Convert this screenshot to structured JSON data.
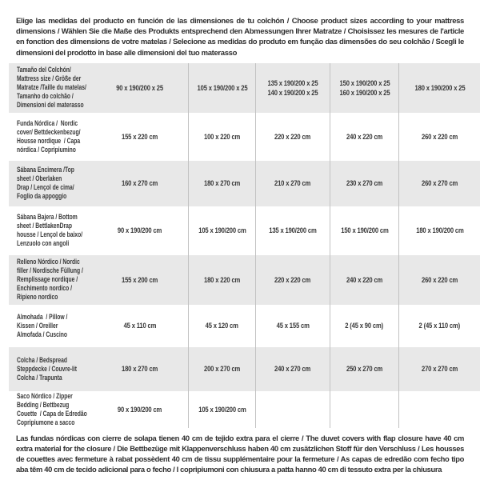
{
  "page": {
    "intro_text": "Elige las medidas del producto en función de las dimensiones de tu colchón / Choose product sizes according to your mattress dimensions / Wählen Sie die Maße des Produkts entsprechend den Abmessungen Ihrer Matratze / Choisissez les mesures de l'article en fonction des dimensions de votre matelas / Selecione as medidas do produto em função das dimensões do seu colchão / Scegli le dimensioni del prodotto in base alle dimensioni del tuo materasso",
    "footer_text": "Las fundas nórdicas con cierre de solapa tienen 40 cm de tejido extra para el cierre  /  The duvet covers with flap closure have 40 cm extra material for the closure / Die Bettbezüge mit Klappenverschluss haben 40 cm zusätzlichen Stoff für den Verschluss / Les housses de couettes avec fermeture à rabat possèdent 40 cm de tissu supplémentaire pour la fermeture / As capas de edredão com fecho tipo aba têm 40 cm de tecido adicional para o fecho / I copripiumoni con chiusura a patta hanno 40 cm di tessuto extra per la chiusura"
  },
  "colors": {
    "row_alt_background": "#e8e8e8",
    "divider": "#c2c2c2",
    "text": "#383838"
  },
  "size_table": {
    "header_row": {
      "label": "Tamaño del Colchón/\nMattress size / Größe der\nMatratze /Taille du matelas/\nTamanho do colchão /\nDimensioni del materasso",
      "columns": [
        "90 x 190/200 x 25",
        "105 x 190/200 x 25",
        "135 x 190/200 x 25\n140 x 190/200 x 25",
        "150 x 190/200 x 25\n160 x 190/200 x 25",
        "180 x 190/200 x 25"
      ]
    },
    "rows": [
      {
        "label": "Funda Nórdica /  Nordic\ncover/ Bettdeckenbezug/\nHousse nordique  / Capa\nnórdica / Copripiumino",
        "values": [
          "155 x 220 cm",
          "100 x 220 cm",
          "220 x 220 cm",
          "240 x 220 cm",
          "260 x 220 cm"
        ]
      },
      {
        "label": "Sábana Encimera /Top\nsheet / Oberlaken\nDrap / Lençol de cima/\nFoglio da appoggio",
        "values": [
          "160 x 270 cm",
          "180 x 270 cm",
          "210 x 270 cm",
          "230 x 270 cm",
          "260 x 270 cm"
        ]
      },
      {
        "label": "Sábana Bajera / Bottom\nsheet / BettlakenDrap\nhousse / Lençol de baixo/\nLenzuolo con angoli",
        "values": [
          "90 x 190/200 cm",
          "105 x 190/200 cm",
          "135 x 190/200 cm",
          "150 x 190/200 cm",
          "180 x 190/200 cm"
        ]
      },
      {
        "label": "Relleno Nórdico / Nordic\nfiller / Nordische Füllung /\nRemplissage nordique /\nEnchimento nordico /\nRipieno nordico",
        "values": [
          "155 x 200 cm",
          "180 x 220 cm",
          "220 x 220 cm",
          "240 x 220 cm",
          "260 x 220 cm"
        ]
      },
      {
        "label": "Almohada  / Pillow /\nKissen / Oreiller\nAlmofada / Cuscino",
        "values": [
          "45 x 110 cm",
          "45 x 120 cm",
          "45 x 155 cm",
          "2 (45 x 90 cm)",
          "2 (45 x 110 cm)"
        ]
      },
      {
        "label": "Colcha / Bedspread\nSteppdecke / Couvre-lit\nColcha / Trapunta",
        "values": [
          "180 x 270 cm",
          "200 x 270 cm",
          "240 x 270 cm",
          "250 x 270 cm",
          "270 x 270 cm"
        ]
      },
      {
        "label": "Saco Nórdico / Zipper\nBedding / Bettbezug\nCouette  / Capa de Edredão\nCopripiumone a sacco",
        "values": [
          "90 x 190/200 cm",
          "105 x 190/200 cm",
          "",
          "",
          ""
        ]
      }
    ]
  }
}
